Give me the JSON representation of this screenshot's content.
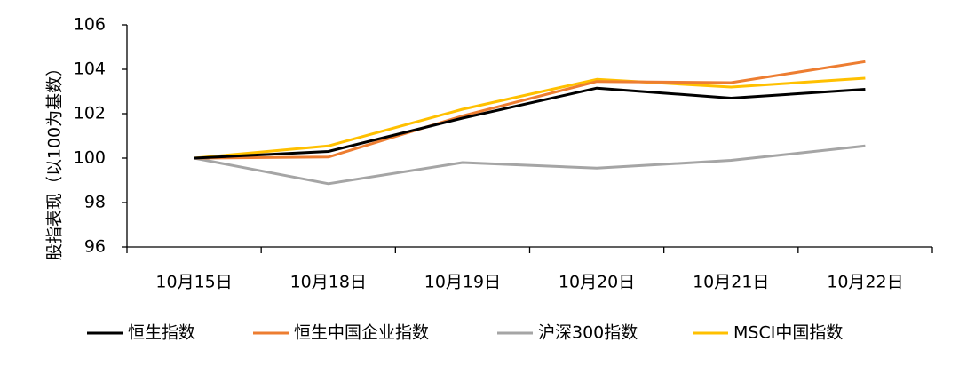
{
  "chart_data": {
    "type": "line",
    "title": "",
    "xlabel": "",
    "ylabel": "股指表现（以100为基数）",
    "categories": [
      "10月15日",
      "10月18日",
      "10月19日",
      "10月20日",
      "10月21日",
      "10月22日"
    ],
    "ylim": [
      96,
      106
    ],
    "yticks": [
      96,
      98,
      100,
      102,
      104,
      106
    ],
    "grid": false,
    "legend_position": "bottom",
    "series": [
      {
        "name": "恒生指数",
        "color": "#000000",
        "values": [
          100.0,
          100.3,
          101.8,
          103.15,
          102.7,
          103.1
        ]
      },
      {
        "name": "恒生中国企业指数",
        "color": "#ED7D31",
        "values": [
          100.0,
          100.05,
          101.9,
          103.45,
          103.4,
          104.35
        ]
      },
      {
        "name": "沪深300指数",
        "color": "#A5A5A5",
        "values": [
          100.0,
          98.85,
          99.8,
          99.55,
          99.9,
          100.55
        ]
      },
      {
        "name": "MSCI中国指数",
        "color": "#FFC000",
        "values": [
          100.0,
          100.55,
          102.2,
          103.55,
          103.2,
          103.6
        ]
      }
    ]
  }
}
